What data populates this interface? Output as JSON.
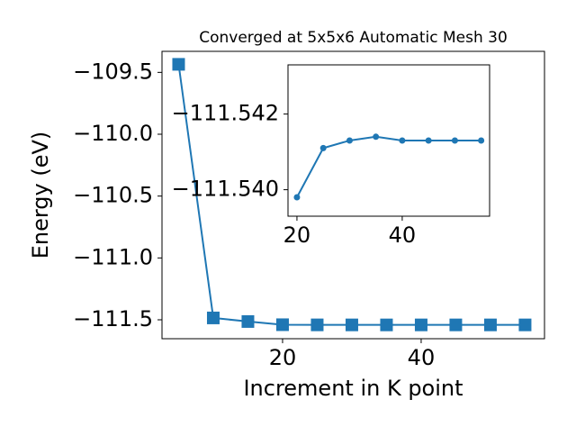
{
  "chart_data": [
    {
      "type": "line",
      "title": "Converged at 5x5x6 Automatic Mesh 30",
      "xlabel": "Increment in K point",
      "ylabel": "Energy (eV)",
      "x": [
        5,
        10,
        15,
        20,
        25,
        30,
        35,
        40,
        45,
        50,
        55
      ],
      "series": [
        {
          "color": "#1f77b4",
          "marker": "square",
          "values": [
            -109.435,
            -111.485,
            -111.514,
            -111.5398,
            -111.5411,
            -111.5413,
            -111.5414,
            -111.5413,
            -111.5413,
            -111.5413,
            -111.5413
          ]
        }
      ],
      "xlim": [
        2.6,
        57.8
      ],
      "ylim": [
        -111.653,
        -109.33
      ],
      "xticks": [
        20,
        40
      ],
      "yticks": [
        {
          "value": -111.5,
          "label": "−111.5"
        },
        {
          "value": -111.0,
          "label": "−111.0"
        },
        {
          "value": -110.5,
          "label": "−110.5"
        },
        {
          "value": -110.0,
          "label": "−110.0"
        },
        {
          "value": -109.5,
          "label": "−109.5"
        }
      ]
    },
    {
      "type": "line",
      "x": [
        20,
        25,
        30,
        35,
        40,
        45,
        50,
        55
      ],
      "series": [
        {
          "color": "#1f77b4",
          "marker": "circle",
          "values": [
            -111.5398,
            -111.5411,
            -111.5413,
            -111.5414,
            -111.5413,
            -111.5413,
            -111.5413,
            -111.5413
          ]
        }
      ],
      "xlim": [
        18.3,
        56.6
      ],
      "ylim": [
        -111.5393,
        -111.5433
      ],
      "xticks": [
        20,
        40
      ],
      "yticks": [
        {
          "value": -111.54,
          "label": "−111.540"
        },
        {
          "value": -111.542,
          "label": "−111.542"
        }
      ]
    }
  ]
}
